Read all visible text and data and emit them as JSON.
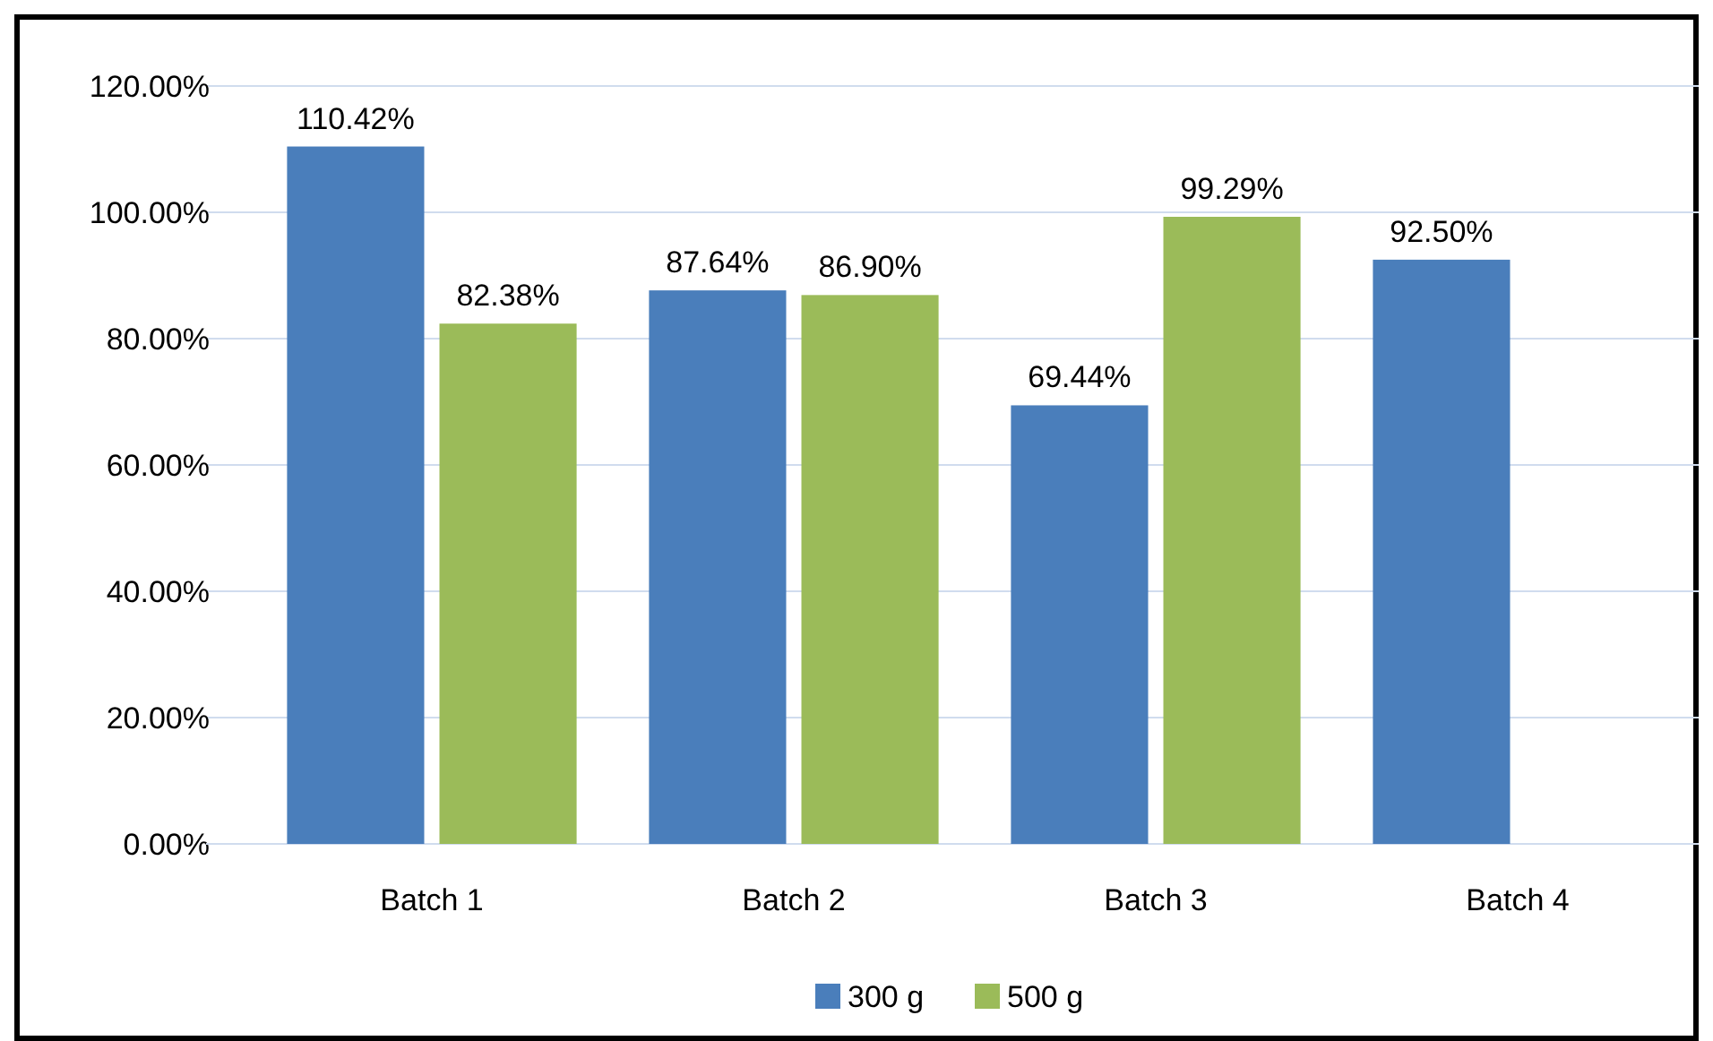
{
  "chart_data": {
    "type": "bar",
    "categories": [
      "Batch 1",
      "Batch 2",
      "Batch 3",
      "Batch 4"
    ],
    "series": [
      {
        "name": "300 g",
        "color": "#4a7ebb",
        "values": [
          110.42,
          87.64,
          69.44,
          92.5
        ],
        "value_labels": [
          "110.42%",
          "87.64%",
          "69.44%",
          "92.50%"
        ]
      },
      {
        "name": "500 g",
        "color": "#9bbb59",
        "values": [
          82.38,
          86.9,
          99.29,
          null
        ],
        "value_labels": [
          "82.38%",
          "86.90%",
          "99.29%",
          null
        ]
      }
    ],
    "ylim": [
      0,
      120
    ],
    "yticks": [
      {
        "value": 0,
        "label": "0.00%"
      },
      {
        "value": 20,
        "label": "20.00%"
      },
      {
        "value": 40,
        "label": "40.00%"
      },
      {
        "value": 60,
        "label": "60.00%"
      },
      {
        "value": 80,
        "label": "80.00%"
      },
      {
        "value": 100,
        "label": "100.00%"
      },
      {
        "value": 120,
        "label": "120.00%"
      }
    ],
    "grid": "y",
    "legend": "bottom"
  }
}
